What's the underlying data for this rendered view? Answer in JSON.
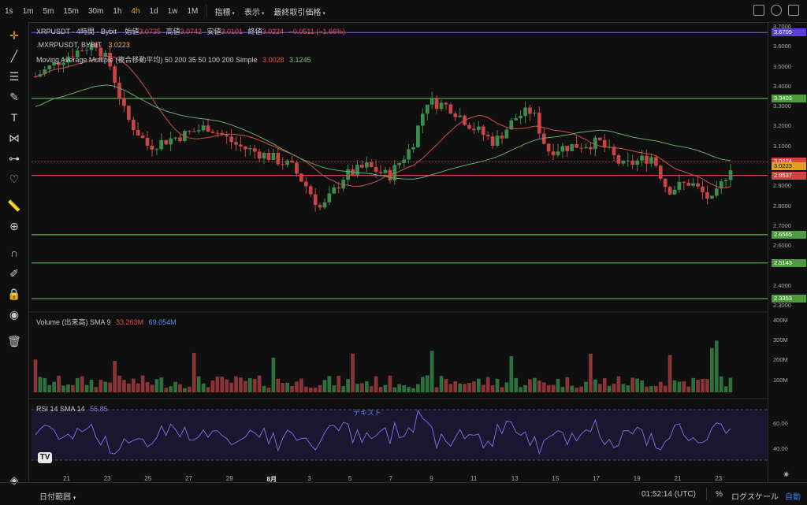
{
  "toolbar": {
    "timeframes": [
      "1s",
      "1m",
      "5m",
      "15m",
      "30m",
      "1h",
      "4h",
      "1d",
      "1w",
      "1M"
    ],
    "active_timeframe": "4h",
    "menus": [
      "指標",
      "表示",
      "最終取引価格"
    ]
  },
  "legend": {
    "symbol_line": "XRPUSDT · 4時間 · Bybit",
    "open_label": "始値",
    "open": "3.0735",
    "high_label": "高値",
    "high": "3.0742",
    "low_label": "安値",
    "low": "3.0101",
    "close_label": "終値",
    "close": "3.0224",
    "change": "−0.0511 (−1.66%)",
    "mxrp_label": ".MXRPUSDT, BYBIT",
    "mxrp_value": "3.0223",
    "ma_label": "Moving Average Multiple (複合移動平均) 50 200 35 50 100 200 Simple",
    "ma_value_1": "3.0028",
    "ma_value_2": "3.1245",
    "volume_label": "Volume (出来高) SMA 9",
    "volume_value_1": "33.263M",
    "volume_value_2": "69.054M",
    "rsi_label": "RSI 14 SMA 14",
    "rsi_value": "55.85",
    "rsi_text_annotation": "テキスト"
  },
  "price_scale": {
    "ticks": [
      "3.7000",
      "3.6000",
      "3.5000",
      "3.4000",
      "3.3000",
      "3.2000",
      "3.1000",
      "3.0000",
      "2.9000",
      "2.8000",
      "2.7000",
      "2.6000",
      "2.5000",
      "2.4000",
      "2.3000"
    ],
    "labels": [
      {
        "text": "3.6709",
        "color": "#5b3fd6"
      },
      {
        "text": "3.3403",
        "color": "#4e9a3e"
      },
      {
        "text": "3.0224",
        "color": "#d94040"
      },
      {
        "text": "3.0223",
        "color": "#e0a020"
      },
      {
        "text": "2.9537",
        "color": "#d94040"
      },
      {
        "text": "2.6565",
        "color": "#4e9a3e"
      },
      {
        "text": "2.5143",
        "color": "#4e9a3e"
      },
      {
        "text": "2.3353",
        "color": "#4e9a3e"
      }
    ],
    "volume_ticks": [
      "400M",
      "300M",
      "200M",
      "100M"
    ],
    "rsi_ticks": [
      "60.00",
      "40.00"
    ]
  },
  "time_axis": [
    "21",
    "23",
    "25",
    "27",
    "29",
    "8月",
    "3",
    "5",
    "7",
    "9",
    "11",
    "13",
    "15",
    "17",
    "19",
    "21",
    "23"
  ],
  "bottom": {
    "date_range": "日付範囲",
    "clock": "01:52:14 (UTC)",
    "percent": "%",
    "log_scale": "ログスケール",
    "auto": "自動"
  },
  "colors": {
    "up": "#3d8c4f",
    "down": "#c94545",
    "support_green": "#5cb85c",
    "resistance_purple": "#5b3fd6",
    "red_line": "#e05050",
    "ma_red": "#d05050",
    "ma_green": "#6aa86a",
    "rsi": "#7a6ad8"
  },
  "icons": [
    "crosshair-icon",
    "trend-line-icon",
    "fib-icon",
    "brush-icon",
    "text-icon",
    "pattern-icon",
    "measure-icon",
    "heart-icon",
    "ruler-icon",
    "zoom-icon",
    "magnet-icon",
    "lock-draw-icon",
    "lock-icon",
    "eye-icon",
    "trash-icon",
    "camera-icon",
    "settings-icon",
    "fullscreen-icon"
  ]
}
